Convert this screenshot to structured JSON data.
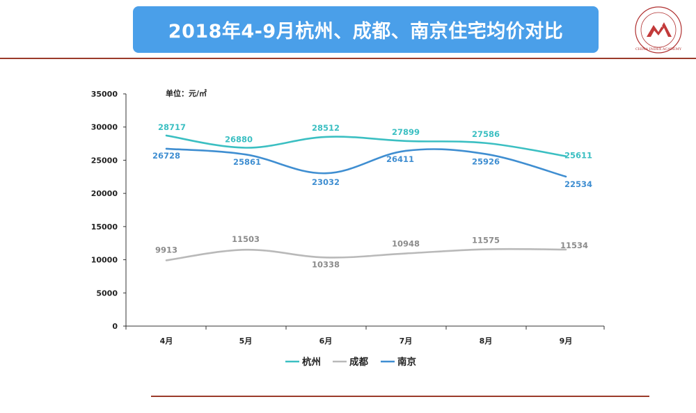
{
  "header": {
    "title": "2018年4-9月杭州、成都、南京住宅均价对比",
    "logo_name": "CHINA INDEX ACADEMY",
    "logo_mark": "中指"
  },
  "colors": {
    "banner": "#4a9fe9",
    "rule": "#9a3a2a",
    "hangzhou": "#3bbfc2",
    "chengdu": "#b9b9b9",
    "nanjing": "#3f8ed1"
  },
  "chart_data": {
    "type": "line",
    "unit_label": "单位：元/㎡",
    "categories": [
      "4月",
      "5月",
      "6月",
      "7月",
      "8月",
      "9月"
    ],
    "ylim": [
      0,
      35000
    ],
    "yticks": [
      0,
      5000,
      10000,
      15000,
      20000,
      25000,
      30000,
      35000
    ],
    "grid": false,
    "legend_position": "bottom",
    "series": [
      {
        "name": "杭州",
        "color": "#3bbfc2",
        "values": [
          28717,
          26880,
          28512,
          27899,
          27586,
          25611
        ]
      },
      {
        "name": "成都",
        "color": "#b9b9b9",
        "values": [
          9913,
          11503,
          10338,
          10948,
          11575,
          11534
        ]
      },
      {
        "name": "南京",
        "color": "#3f8ed1",
        "values": [
          26728,
          25861,
          23032,
          26411,
          25926,
          22534
        ]
      }
    ]
  }
}
